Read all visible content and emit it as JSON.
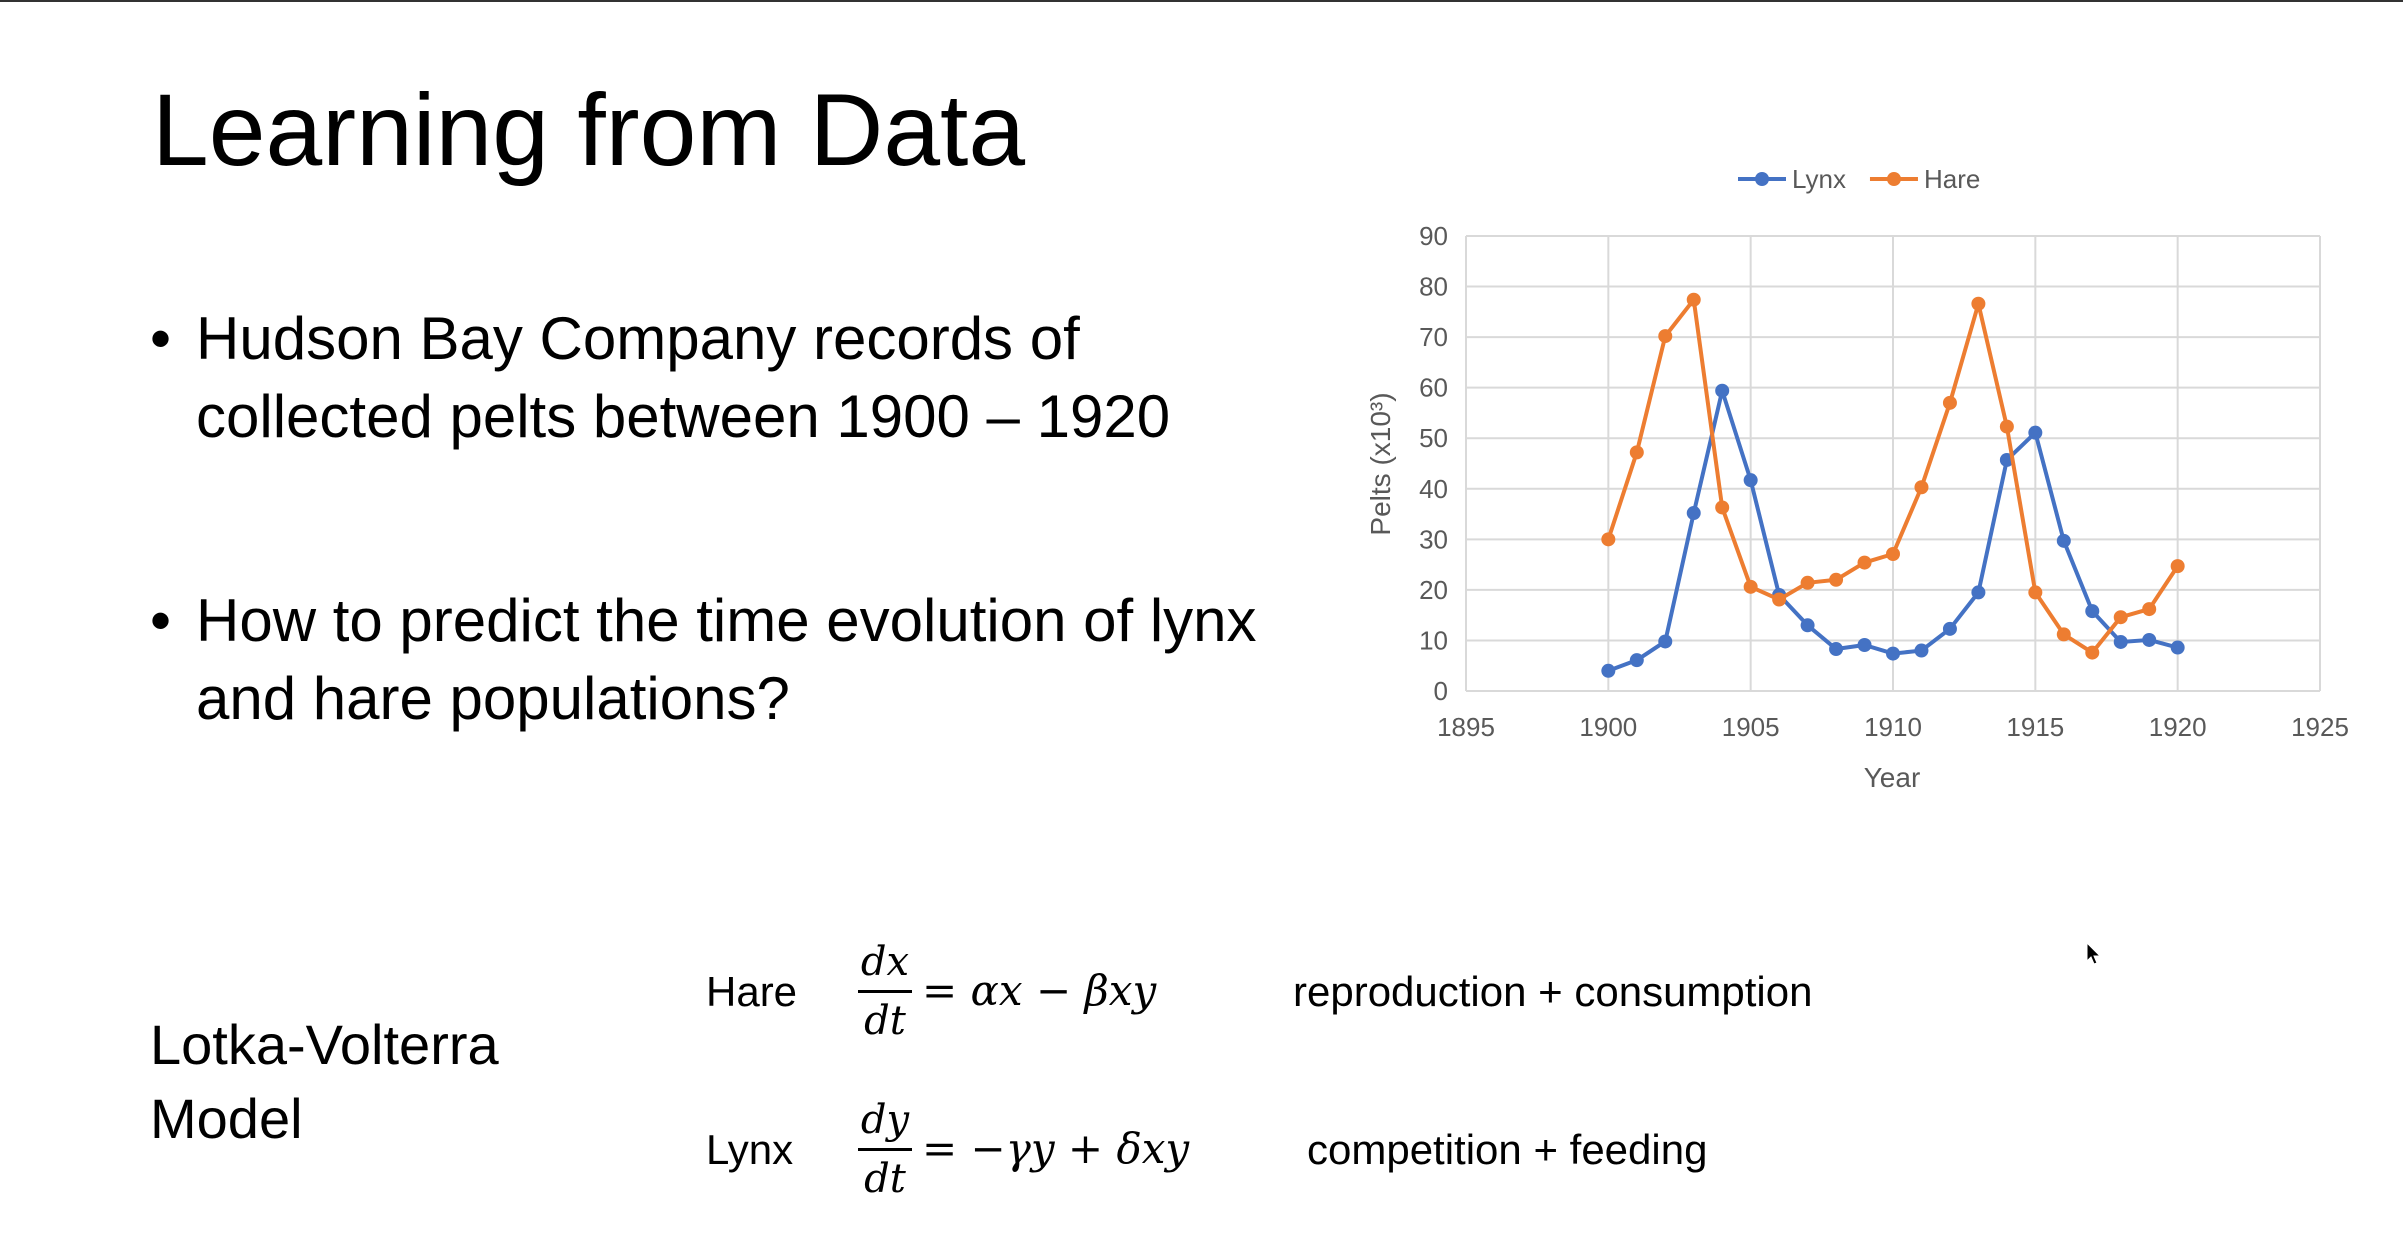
{
  "slide": {
    "title": "Learning from Data",
    "bullets": [
      "Hudson Bay Company records of collected pelts between 1900 – 1920",
      "How to predict the time evolution of lynx and hare populations?"
    ],
    "model_label_line1": "Lotka-Volterra",
    "model_label_line2": "Model",
    "equations": [
      {
        "name": "Hare",
        "numerator": "dx",
        "denominator": "dt",
        "rhs": "=   αx − βxy",
        "note": "reproduction + consumption"
      },
      {
        "name": "Lynx",
        "numerator": "dy",
        "denominator": "dt",
        "rhs": "= −γy + δxy",
        "note": "competition + feeding"
      }
    ]
  },
  "chart_data": {
    "type": "line",
    "xlabel": "Year",
    "ylabel": "Pelts (x10³)",
    "xlim": [
      1895,
      1925
    ],
    "ylim": [
      0,
      90
    ],
    "x_ticks": [
      1895,
      1900,
      1905,
      1910,
      1915,
      1920,
      1925
    ],
    "y_ticks": [
      0,
      10,
      20,
      30,
      40,
      50,
      60,
      70,
      80,
      90
    ],
    "grid": true,
    "legend_position": "top",
    "x": [
      1900,
      1901,
      1902,
      1903,
      1904,
      1905,
      1906,
      1907,
      1908,
      1909,
      1910,
      1911,
      1912,
      1913,
      1914,
      1915,
      1916,
      1917,
      1918,
      1919,
      1920
    ],
    "series": [
      {
        "name": "Lynx",
        "color": "#4472C4",
        "values": [
          4,
          6.1,
          9.8,
          35.2,
          59.4,
          41.7,
          19,
          13,
          8.3,
          9.1,
          7.4,
          8,
          12.3,
          19.5,
          45.7,
          51.1,
          29.7,
          15.8,
          9.7,
          10.1,
          8.6
        ]
      },
      {
        "name": "Hare",
        "color": "#ED7D31",
        "values": [
          30,
          47.2,
          70.2,
          77.4,
          36.3,
          20.6,
          18.1,
          21.4,
          22,
          25.4,
          27.1,
          40.3,
          57,
          76.6,
          52.3,
          19.5,
          11.2,
          7.6,
          14.6,
          16.2,
          24.7
        ]
      }
    ]
  }
}
